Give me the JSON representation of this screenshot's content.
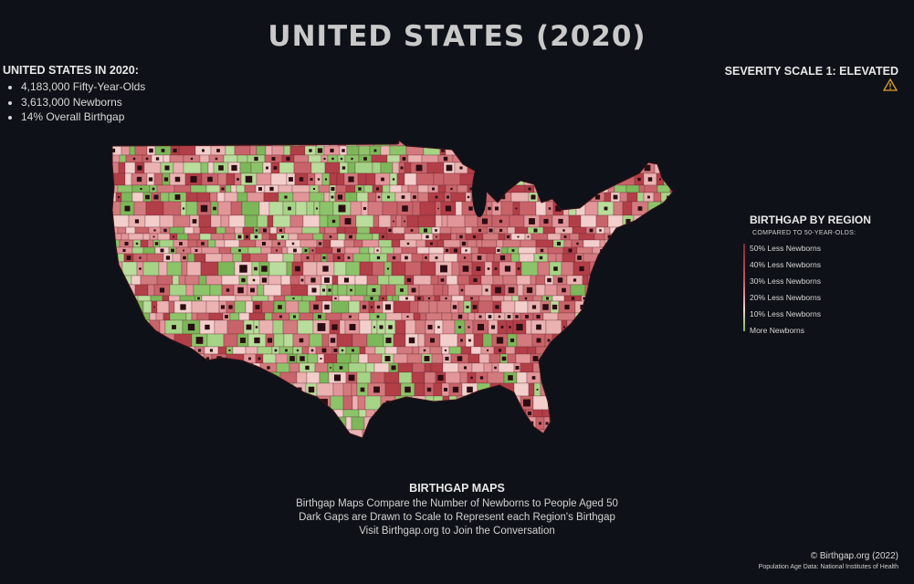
{
  "title": "UNITED STATES (2020)",
  "stats": {
    "heading": "UNITED STATES IN 2020:",
    "items": [
      "4,183,000 Fifty-Year-Olds",
      "3,613,000 Newborns",
      "14% Overall Birthgap"
    ]
  },
  "severity": {
    "label": "SEVERITY SCALE 1: ELEVATED",
    "icon": "warning-triangle-icon",
    "icon_color": "#e0a12a"
  },
  "legend": {
    "title": "BIRTHGAP BY REGION",
    "subtitle": "COMPARED TO 50-YEAR-OLDS:",
    "items": [
      "50% Less Newborns",
      "40% Less Newborns",
      "30% Less Newborns",
      "20% Less Newborns",
      "10% Less Newborns",
      "More Newborns"
    ],
    "colors": [
      "#8e2430",
      "#b23e48",
      "#c9636a",
      "#e3969a",
      "#f3cfcc",
      "#7cb85a"
    ]
  },
  "footer": {
    "title": "BIRTHGAP MAPS",
    "lines": [
      "Birthgap Maps Compare the Number of Newborns to People Aged 50",
      "Dark Gaps are Drawn to Scale to Represent each Region's Birthgap",
      "Visit Birthgap.org to Join the Conversation"
    ]
  },
  "copyright": "© Birthgap.org (2022)",
  "source": "Population Age Data: National Institutes of Health"
}
